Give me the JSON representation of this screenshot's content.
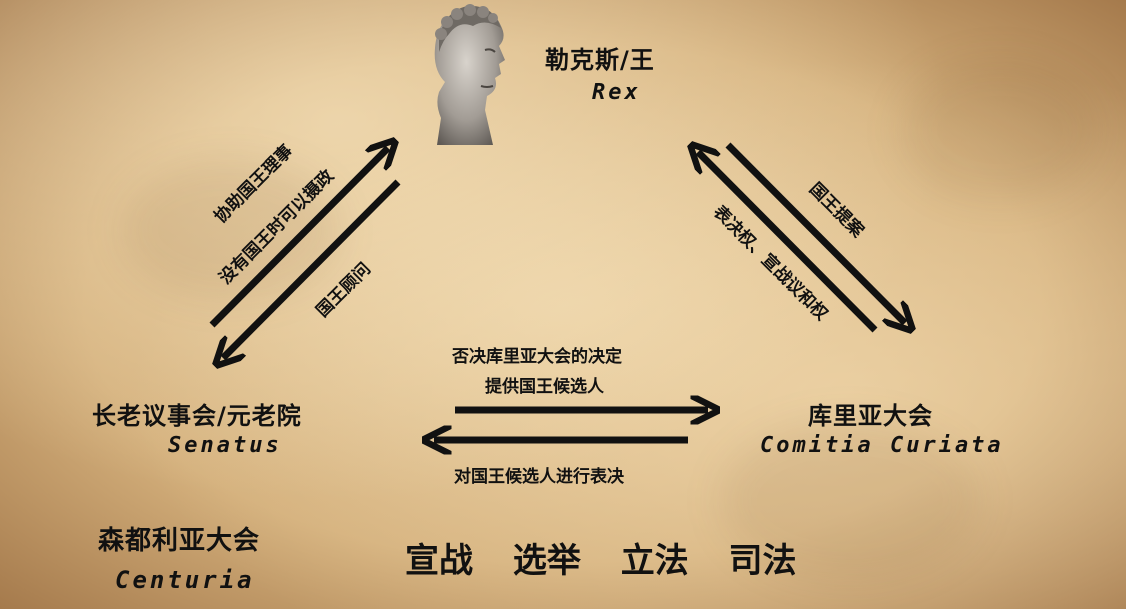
{
  "rex": {
    "cn": "勒克斯/王",
    "en": "Rex"
  },
  "senate": {
    "cn": "长老议事会/元老院",
    "en": "Senatus"
  },
  "curiata": {
    "cn": "库里亚大会",
    "en": "Comitia Curiata"
  },
  "centuria": {
    "cn": "森都利亚大会",
    "en": "Centuria"
  },
  "left_arrows": {
    "up_label_1": "协助国王理事",
    "up_label_2": "没有国王时可以摄政",
    "down_label": "国王顾问"
  },
  "right_arrows": {
    "down_label": "国王提案",
    "up_label": "表决权、宣战议和权"
  },
  "bottom_arrows": {
    "top_label_1": "否决库里亚大会的决定",
    "top_label_2": "提供国王候选人",
    "bottom_label": "对国王候选人进行表决"
  },
  "powers": [
    "宣战",
    "选举",
    "立法",
    "司法"
  ]
}
